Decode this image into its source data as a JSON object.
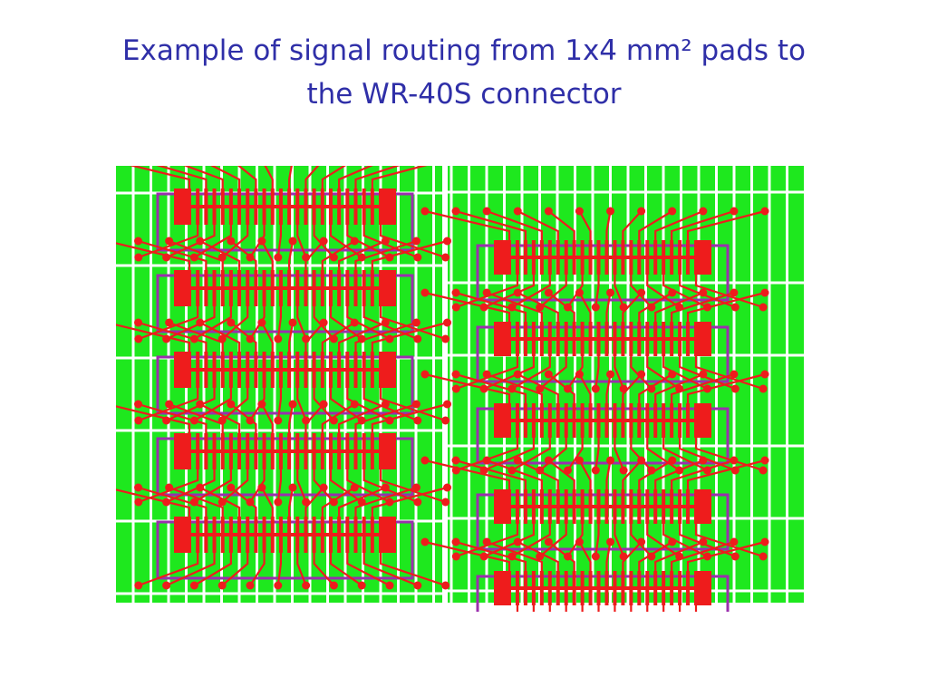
{
  "title_lines": [
    "Example of signal routing from 1x4 mm² pads to",
    "the WR-40S connector"
  ]
}
